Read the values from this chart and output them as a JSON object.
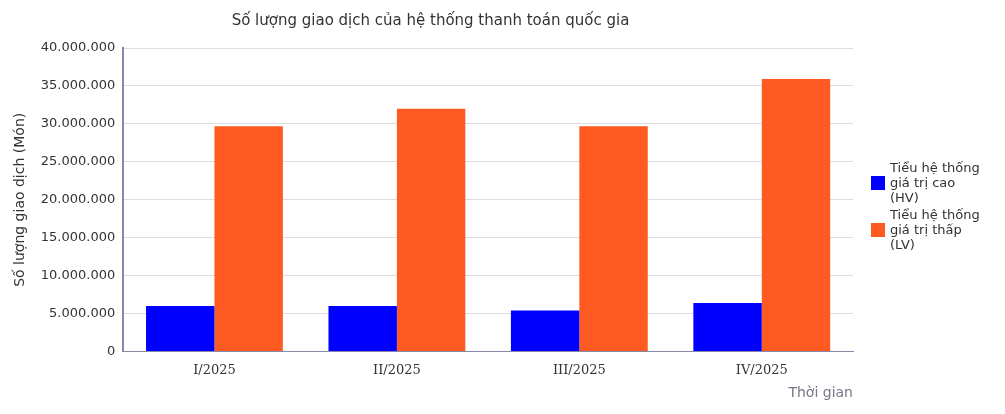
{
  "chart_data": {
    "type": "bar",
    "title": "Số lượng giao dịch của hệ thống thanh toán quốc gia",
    "xlabel": "Thời gian",
    "ylabel": "Số lượng giao dịch (Món)",
    "categories": [
      "I/2025",
      "II/2025",
      "III/2025",
      "IV/2025"
    ],
    "series": [
      {
        "name": "Tiểu hệ thống giá trị cao (HV)",
        "color": "#0000ff",
        "values": [
          6000000,
          6000000,
          5400000,
          6400000
        ]
      },
      {
        "name": "Tiểu hệ thống giá trị thấp (LV)",
        "color": "#ff5a22",
        "values": [
          29700000,
          32000000,
          29700000,
          35900000
        ]
      }
    ],
    "ylim": [
      0,
      40000000
    ],
    "yticks": [
      {
        "value": 0,
        "label": "0"
      },
      {
        "value": 5000000,
        "label": "5.000.000"
      },
      {
        "value": 10000000,
        "label": "10.000.000"
      },
      {
        "value": 15000000,
        "label": "15.000.000"
      },
      {
        "value": 20000000,
        "label": "20.000.000"
      },
      {
        "value": 25000000,
        "label": "25.000.000"
      },
      {
        "value": 30000000,
        "label": "30.000.000"
      },
      {
        "value": 35000000,
        "label": "35.000.000"
      },
      {
        "value": 40000000,
        "label": "40.000.000"
      }
    ],
    "grid": "y",
    "legend": "right"
  }
}
